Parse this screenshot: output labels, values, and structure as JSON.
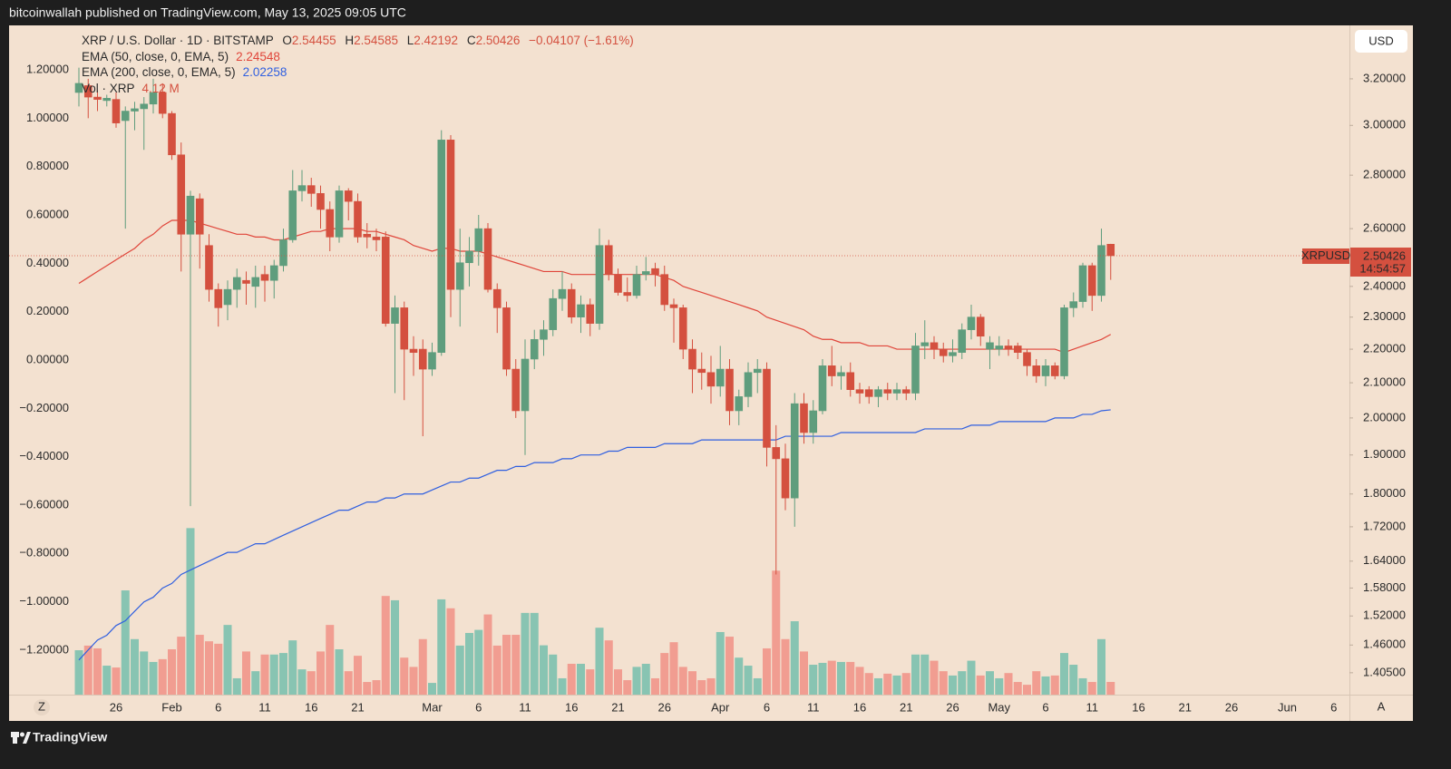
{
  "header": {
    "text": "bitcoinwallah published on TradingView.com, May 13, 2025 09:05 UTC"
  },
  "footer": {
    "brand": "TradingView"
  },
  "buttons": {
    "currency": "USD",
    "zoom": "Z",
    "auto": "A"
  },
  "chart_data": {
    "type": "candlestick",
    "symbol": "XRP / U.S. Dollar · 1D · BITSTAMP",
    "ohlc_prefixes": [
      "O",
      "H",
      "L",
      "C"
    ],
    "change_label": "−0.04107 (−1.61%)",
    "categories": [
      null,
      null,
      null,
      null,
      "26",
      null,
      null,
      null,
      null,
      null,
      "Feb",
      null,
      null,
      null,
      null,
      "6",
      null,
      null,
      null,
      null,
      "11",
      null,
      null,
      null,
      null,
      "16",
      null,
      null,
      null,
      null,
      "21",
      null,
      null,
      null,
      null,
      null,
      null,
      null,
      "Mar",
      null,
      null,
      null,
      null,
      "6",
      null,
      null,
      null,
      null,
      "11",
      null,
      null,
      null,
      null,
      "16",
      null,
      null,
      null,
      null,
      "21",
      null,
      null,
      null,
      null,
      "26",
      null,
      null,
      null,
      null,
      null,
      "Apr",
      null,
      null,
      null,
      null,
      "6",
      null,
      null,
      null,
      null,
      "11",
      null,
      null,
      null,
      null,
      "16",
      null,
      null,
      null,
      null,
      "21",
      null,
      null,
      null,
      null,
      "26",
      null,
      null,
      null,
      null,
      "May",
      null,
      null,
      null,
      null,
      "6",
      null,
      null,
      null,
      null,
      "11",
      null,
      null,
      null,
      null,
      "16",
      null,
      null,
      null,
      null,
      "21",
      null,
      null,
      null,
      null,
      "26",
      null,
      null,
      null,
      null,
      null,
      "Jun",
      null,
      null,
      null,
      null,
      "6"
    ],
    "open": [
      3.14,
      3.17,
      3.12,
      3.105,
      3.11,
      3.02,
      3.06,
      3.07,
      3.09,
      3.14,
      3.05,
      2.88,
      2.58,
      2.71,
      2.54,
      2.39,
      2.34,
      2.39,
      2.42,
      2.4,
      2.44,
      2.42,
      2.47,
      2.56,
      2.74,
      2.76,
      2.73,
      2.67,
      2.57,
      2.74,
      2.7,
      2.58,
      2.57,
      2.57,
      2.28,
      2.33,
      2.2,
      2.2,
      2.14,
      2.19,
      2.94,
      2.39,
      2.48,
      2.52,
      2.6,
      2.39,
      2.33,
      2.14,
      2.02,
      2.17,
      2.23,
      2.26,
      2.36,
      2.39,
      2.3,
      2.34,
      2.28,
      2.54,
      2.44,
      2.38,
      2.37,
      2.44,
      2.46,
      2.44,
      2.34,
      2.33,
      2.2,
      2.14,
      2.13,
      2.09,
      2.14,
      2.02,
      2.06,
      2.13,
      2.14,
      1.92,
      1.89,
      1.79,
      2.04,
      1.96,
      2.02,
      2.15,
      2.12,
      2.13,
      2.08,
      2.08,
      2.06,
      2.08,
      2.07,
      2.08,
      2.07,
      2.21,
      2.22,
      2.2,
      2.18,
      2.19,
      2.26,
      2.3,
      2.2,
      2.2,
      2.21,
      2.21,
      2.19,
      2.15,
      2.12,
      2.15,
      2.12,
      2.33,
      2.35,
      2.47,
      2.37,
      2.54455,
      null,
      null,
      null,
      null,
      null,
      null,
      null,
      null,
      null,
      null,
      null,
      null,
      null,
      null,
      null,
      null,
      null,
      null,
      null,
      null,
      null,
      null,
      null,
      null
    ],
    "high": [
      3.25,
      3.2,
      3.15,
      3.13,
      3.14,
      3.08,
      3.1,
      3.12,
      3.2,
      3.18,
      3.06,
      2.93,
      2.74,
      2.73,
      2.58,
      2.41,
      2.42,
      2.46,
      2.45,
      2.47,
      2.47,
      2.49,
      2.6,
      2.82,
      2.82,
      2.79,
      2.76,
      2.7,
      2.76,
      2.75,
      2.73,
      2.62,
      2.6,
      2.59,
      2.37,
      2.35,
      2.24,
      2.23,
      2.22,
      2.98,
      2.96,
      2.6,
      2.57,
      2.65,
      2.62,
      2.41,
      2.35,
      2.17,
      2.23,
      2.26,
      2.29,
      2.39,
      2.45,
      2.41,
      2.37,
      2.36,
      2.6,
      2.56,
      2.46,
      2.43,
      2.47,
      2.5,
      2.48,
      2.47,
      2.36,
      2.34,
      2.23,
      2.19,
      2.18,
      2.21,
      2.17,
      2.08,
      2.16,
      2.17,
      2.16,
      1.98,
      1.93,
      2.07,
      2.07,
      2.05,
      2.17,
      2.21,
      2.15,
      2.16,
      2.1,
      2.09,
      2.09,
      2.1,
      2.1,
      2.09,
      2.25,
      2.29,
      2.24,
      2.22,
      2.23,
      2.28,
      2.34,
      2.31,
      2.24,
      2.24,
      2.23,
      2.22,
      2.2,
      2.17,
      2.17,
      2.16,
      2.34,
      2.38,
      2.48,
      2.48,
      2.6,
      2.54585,
      null,
      null,
      null,
      null,
      null,
      null,
      null,
      null,
      null,
      null,
      null,
      null,
      null,
      null,
      null,
      null,
      null,
      null,
      null,
      null,
      null,
      null,
      null,
      null
    ],
    "low": [
      3.08,
      3.03,
      3.06,
      3.08,
      2.99,
      2.6,
      2.98,
      2.9,
      3.05,
      3.03,
      2.86,
      2.45,
      1.77,
      2.46,
      2.35,
      2.27,
      2.29,
      2.33,
      2.34,
      2.33,
      2.35,
      2.36,
      2.45,
      2.55,
      2.7,
      2.68,
      2.6,
      2.52,
      2.55,
      2.63,
      2.55,
      2.53,
      2.52,
      2.27,
      2.07,
      2.05,
      2.12,
      1.95,
      2.12,
      2.18,
      2.3,
      2.27,
      2.4,
      2.47,
      2.38,
      2.25,
      2.12,
      2.0,
      1.9,
      2.14,
      2.18,
      2.24,
      2.32,
      2.28,
      2.25,
      2.24,
      2.26,
      2.42,
      2.37,
      2.35,
      2.36,
      2.42,
      2.4,
      2.32,
      2.22,
      2.17,
      2.07,
      2.08,
      2.04,
      2.06,
      1.98,
      1.98,
      2.03,
      2.07,
      1.87,
      1.61,
      1.76,
      1.72,
      1.93,
      1.93,
      2.01,
      2.09,
      2.08,
      2.06,
      2.04,
      2.04,
      2.03,
      2.05,
      2.05,
      2.05,
      2.05,
      2.17,
      2.17,
      2.16,
      2.16,
      2.17,
      2.23,
      2.21,
      2.14,
      2.18,
      2.18,
      2.17,
      2.12,
      2.1,
      2.09,
      2.11,
      2.11,
      2.3,
      2.33,
      2.32,
      2.35,
      2.42192,
      null,
      null,
      null,
      null,
      null,
      null,
      null,
      null,
      null,
      null,
      null,
      null,
      null,
      null,
      null,
      null,
      null,
      null,
      null,
      null,
      null,
      null,
      null,
      null
    ],
    "close": [
      3.18,
      3.12,
      3.11,
      3.115,
      3.01,
      3.06,
      3.07,
      3.09,
      3.14,
      3.05,
      2.88,
      2.58,
      2.72,
      2.58,
      2.39,
      2.33,
      2.39,
      2.43,
      2.41,
      2.43,
      2.42,
      2.47,
      2.56,
      2.74,
      2.76,
      2.73,
      2.67,
      2.57,
      2.74,
      2.7,
      2.57,
      2.57,
      2.56,
      2.28,
      2.33,
      2.2,
      2.19,
      2.14,
      2.19,
      2.94,
      2.39,
      2.48,
      2.52,
      2.6,
      2.39,
      2.33,
      2.14,
      2.02,
      2.17,
      2.23,
      2.26,
      2.36,
      2.39,
      2.3,
      2.34,
      2.28,
      2.54,
      2.44,
      2.38,
      2.37,
      2.44,
      2.45,
      2.44,
      2.34,
      2.33,
      2.2,
      2.14,
      2.13,
      2.09,
      2.14,
      2.02,
      2.06,
      2.13,
      2.14,
      1.92,
      1.89,
      1.79,
      2.04,
      1.96,
      2.02,
      2.15,
      2.12,
      2.13,
      2.08,
      2.07,
      2.06,
      2.08,
      2.07,
      2.08,
      2.07,
      2.21,
      2.22,
      2.2,
      2.18,
      2.19,
      2.26,
      2.3,
      2.24,
      2.22,
      2.21,
      2.2,
      2.19,
      2.15,
      2.12,
      2.15,
      2.12,
      2.33,
      2.35,
      2.47,
      2.37,
      2.54,
      2.50426,
      null,
      null,
      null,
      null,
      null,
      null,
      null,
      null,
      null,
      null,
      null,
      null,
      null,
      null,
      null,
      null,
      null,
      null,
      null,
      null,
      null,
      null,
      null,
      null
    ],
    "up_color": "#5f9d7d",
    "down_color": "#d4503f",
    "volume": {
      "name": "Vol · XRP",
      "legend_value_label": "4.12 M",
      "up_color": "#88c4b2",
      "down_color": "#f19d91",
      "ylim": [
        0,
        217
      ],
      "values": [
        14.4,
        15.9,
        15.0,
        9.4,
        8.8,
        33.8,
        18.0,
        14.0,
        10.6,
        11.5,
        14.7,
        18.8,
        54.0,
        19.4,
        17.3,
        16.5,
        22.6,
        5.3,
        14.0,
        7.6,
        13.0,
        13.0,
        13.5,
        17.6,
        8.2,
        7.6,
        14.0,
        22.6,
        14.7,
        7.6,
        12.6,
        4.1,
        4.7,
        32.0,
        30.6,
        12.0,
        9.0,
        18.0,
        3.8,
        30.9,
        28.0,
        15.9,
        20.0,
        21.0,
        26.0,
        15.9,
        19.4,
        19.4,
        26.5,
        26.5,
        16.0,
        13.0,
        5.3,
        10.0,
        10.0,
        8.2,
        21.7,
        17.6,
        8.2,
        4.7,
        9.0,
        10.0,
        5.3,
        13.5,
        17.0,
        9.0,
        7.6,
        4.7,
        5.3,
        20.3,
        18.8,
        12.0,
        9.4,
        5.3,
        15.0,
        40.2,
        18.0,
        23.8,
        14.0,
        9.7,
        10.3,
        11.0,
        10.6,
        10.6,
        9.0,
        7.0,
        5.3,
        6.8,
        6.2,
        7.0,
        13.0,
        13.0,
        11.0,
        7.6,
        6.2,
        7.6,
        11.0,
        6.2,
        7.6,
        5.3,
        7.0,
        4.1,
        3.2,
        7.6,
        5.9,
        6.2,
        13.5,
        9.7,
        5.3,
        4.1,
        18.0,
        4.12,
        null,
        null,
        null,
        null,
        null,
        null,
        null,
        null,
        null,
        null,
        null,
        null,
        null,
        null,
        null,
        null,
        null,
        null,
        null,
        null,
        null,
        null,
        null,
        null
      ]
    },
    "series": [
      {
        "name": "EMA (50, close, 0, EMA, 5)",
        "color": "#e0453a",
        "values": [
          2.41,
          2.43,
          2.45,
          2.47,
          2.49,
          2.51,
          2.53,
          2.56,
          2.58,
          2.61,
          2.63,
          2.63,
          2.63,
          2.62,
          2.61,
          2.6,
          2.59,
          2.58,
          2.58,
          2.57,
          2.57,
          2.56,
          2.56,
          2.57,
          2.58,
          2.59,
          2.59,
          2.6,
          2.6,
          2.6,
          2.6,
          2.59,
          2.59,
          2.58,
          2.57,
          2.56,
          2.54,
          2.53,
          2.52,
          2.53,
          2.53,
          2.52,
          2.52,
          2.52,
          2.51,
          2.5,
          2.49,
          2.48,
          2.47,
          2.46,
          2.45,
          2.45,
          2.45,
          2.44,
          2.44,
          2.44,
          2.44,
          2.44,
          2.44,
          2.44,
          2.44,
          2.44,
          2.44,
          2.43,
          2.42,
          2.4,
          2.39,
          2.38,
          2.37,
          2.36,
          2.35,
          2.34,
          2.33,
          2.32,
          2.3,
          2.29,
          2.28,
          2.27,
          2.26,
          2.24,
          2.23,
          2.23,
          2.22,
          2.22,
          2.22,
          2.21,
          2.21,
          2.21,
          2.2,
          2.2,
          2.2,
          2.2,
          2.2,
          2.2,
          2.2,
          2.2,
          2.2,
          2.2,
          2.2,
          2.2,
          2.2,
          2.2,
          2.2,
          2.2,
          2.2,
          2.2,
          2.19,
          2.2,
          2.21,
          2.22,
          2.23,
          2.24548,
          null,
          null,
          null,
          null,
          null,
          null,
          null,
          null,
          null,
          null,
          null,
          null,
          null,
          null,
          null,
          null,
          null,
          null,
          null,
          null,
          null,
          null,
          null,
          null
        ]
      },
      {
        "name": "EMA (200, close, 0, EMA, 5)",
        "color": "#2f5fe0",
        "values": [
          1.43,
          1.45,
          1.47,
          1.48,
          1.5,
          1.51,
          1.53,
          1.55,
          1.56,
          1.58,
          1.59,
          1.61,
          1.62,
          1.63,
          1.64,
          1.65,
          1.66,
          1.66,
          1.67,
          1.68,
          1.68,
          1.69,
          1.7,
          1.71,
          1.72,
          1.73,
          1.74,
          1.75,
          1.76,
          1.76,
          1.77,
          1.78,
          1.78,
          1.79,
          1.79,
          1.8,
          1.8,
          1.8,
          1.81,
          1.82,
          1.83,
          1.83,
          1.84,
          1.84,
          1.85,
          1.86,
          1.86,
          1.87,
          1.87,
          1.88,
          1.88,
          1.88,
          1.89,
          1.89,
          1.9,
          1.9,
          1.9,
          1.91,
          1.91,
          1.92,
          1.92,
          1.92,
          1.92,
          1.93,
          1.93,
          1.93,
          1.93,
          1.94,
          1.94,
          1.94,
          1.94,
          1.94,
          1.94,
          1.94,
          1.94,
          1.94,
          1.95,
          1.95,
          1.95,
          1.95,
          1.95,
          1.95,
          1.96,
          1.96,
          1.96,
          1.96,
          1.96,
          1.96,
          1.96,
          1.96,
          1.96,
          1.97,
          1.97,
          1.97,
          1.97,
          1.97,
          1.98,
          1.98,
          1.98,
          1.99,
          1.99,
          1.99,
          1.99,
          1.99,
          1.99,
          2.0,
          2.0,
          2.0,
          2.01,
          2.01,
          2.02,
          2.02258,
          null,
          null,
          null,
          null,
          null,
          null,
          null,
          null,
          null,
          null,
          null,
          null,
          null,
          null,
          null,
          null,
          null,
          null,
          null,
          null,
          null,
          null,
          null,
          null
        ]
      }
    ],
    "log_y": true,
    "ylim": [
      1.363,
      3.446
    ],
    "yticks": [
      {
        "value": 3.2,
        "label": "3.20000"
      },
      {
        "value": 3,
        "label": "3.00000"
      },
      {
        "value": 2.8,
        "label": "2.80000"
      },
      {
        "value": 2.6,
        "label": "2.60000"
      },
      {
        "value": 2.4,
        "label": "2.40000"
      },
      {
        "value": 2.3,
        "label": "2.30000"
      },
      {
        "value": 2.2,
        "label": "2.20000"
      },
      {
        "value": 2.1,
        "label": "2.10000"
      },
      {
        "value": 2,
        "label": "2.00000"
      },
      {
        "value": 1.9,
        "label": "1.90000"
      },
      {
        "value": 1.8,
        "label": "1.80000"
      },
      {
        "value": 1.72,
        "label": "1.72000"
      },
      {
        "value": 1.64,
        "label": "1.64000"
      },
      {
        "value": 1.58,
        "label": "1.58000"
      },
      {
        "value": 1.52,
        "label": "1.52000"
      },
      {
        "value": 1.46,
        "label": "1.46000"
      },
      {
        "value": 1.405,
        "label": "1.40500"
      }
    ],
    "y2lim": [
      -1.384,
      1.384
    ],
    "y2ticks": [
      {
        "value": 1.2,
        "label": "1.20000"
      },
      {
        "value": 1,
        "label": "1.00000"
      },
      {
        "value": 0.8,
        "label": "0.80000"
      },
      {
        "value": 0.6,
        "label": "0.60000"
      },
      {
        "value": 0.4,
        "label": "0.40000"
      },
      {
        "value": 0.2,
        "label": "0.20000"
      },
      {
        "value": 0,
        "label": "0.00000"
      },
      {
        "value": -0.2,
        "label": "−0.20000"
      },
      {
        "value": -0.4,
        "label": "−0.40000"
      },
      {
        "value": -0.6,
        "label": "−0.60000"
      },
      {
        "value": -0.8,
        "label": "−0.80000"
      },
      {
        "value": -1,
        "label": "−1.00000"
      },
      {
        "value": -1.2,
        "label": "−1.20000"
      }
    ],
    "grid": false,
    "last_price": {
      "name": "XRPUSD",
      "countdown": "14:54:57"
    }
  }
}
